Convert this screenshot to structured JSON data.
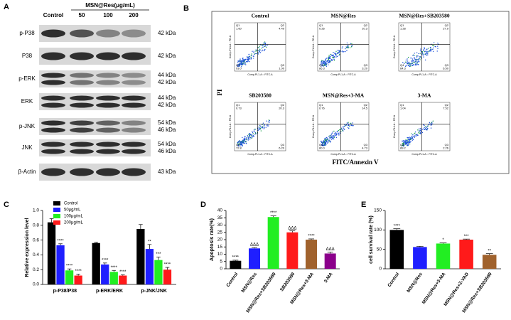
{
  "panel_labels": [
    "A",
    "B",
    "C",
    "D",
    "E"
  ],
  "blot": {
    "group_label": "MSN@Res(μg/mL)",
    "lanes": [
      "Control",
      "50",
      "100",
      "200"
    ],
    "rows": [
      {
        "label": "p-P38",
        "kda": [
          "42 kDa"
        ]
      },
      {
        "label": "P38",
        "kda": [
          "42 kDa"
        ]
      },
      {
        "label": "p-ERK",
        "kda": [
          "44 kDa",
          "42 kDa"
        ]
      },
      {
        "label": "ERK",
        "kda": [
          "44 kDa",
          "42 kDa"
        ]
      },
      {
        "label": "p-JNK",
        "kda": [
          "54 kDa",
          "46 kDa"
        ]
      },
      {
        "label": "JNK",
        "kda": [
          "54 kDa",
          "46 kDa"
        ]
      },
      {
        "label": "β-Actin",
        "kda": [
          "43 kDa"
        ]
      }
    ]
  },
  "flow": {
    "y_label": "PI",
    "x_label": "FITC/Annexin V",
    "axis_x": "Comp-PL1-A :: FITC-A",
    "axis_y": "Comp-PL4-A :: PE-A",
    "plots": [
      {
        "title": "Control",
        "quadrants": [
          [
            "Q1",
            "1.60"
          ],
          [
            "Q2",
            "4.49"
          ],
          [
            "Q4",
            "93.0"
          ],
          [
            "Q3",
            "1.00"
          ]
        ]
      },
      {
        "title": "MSN@Res",
        "quadrants": [
          [
            "Q1",
            "0.26"
          ],
          [
            "Q2",
            "10.3"
          ],
          [
            "Q4",
            "86.3"
          ],
          [
            "Q3",
            "3.20"
          ]
        ]
      },
      {
        "title": "MSN@Res+SB203580",
        "quadrants": [
          [
            "Q1",
            "1.28"
          ],
          [
            "Q2",
            "27.9"
          ],
          [
            "Q4",
            "64.3"
          ],
          [
            "Q3",
            "6.50"
          ]
        ]
      },
      {
        "title": "SB203580",
        "quadrants": [
          [
            "Q1",
            "0.73"
          ],
          [
            "Q2",
            "20.3"
          ],
          [
            "Q4",
            "72.8"
          ],
          [
            "Q3",
            "6.20"
          ]
        ]
      },
      {
        "title": "MSN@Res+3-MA",
        "quadrants": [
          [
            "Q1",
            "0.76"
          ],
          [
            "Q2",
            "14.5"
          ],
          [
            "Q4",
            "80.0"
          ],
          [
            "Q3",
            "4.73"
          ]
        ]
      },
      {
        "title": "3-MA",
        "quadrants": [
          [
            "Q1",
            "1.04"
          ],
          [
            "Q2",
            "7.52"
          ],
          [
            "Q4",
            "89.2"
          ],
          [
            "Q3",
            "2.26"
          ]
        ]
      }
    ]
  },
  "chart_data": [
    {
      "type": "bar",
      "ylabel": "Relative expression level",
      "categories": [
        "p-P38/P38",
        "p-ERK/ERK",
        "p-JNK/JNK"
      ],
      "series": [
        {
          "name": "Control",
          "color": "#000000",
          "values": [
            0.84,
            0.56,
            0.75
          ],
          "errors": [
            0.05,
            0.01,
            0.06
          ],
          "annotations": [
            null,
            null,
            null
          ]
        },
        {
          "name": "50μg/mL",
          "color": "#1f1fff",
          "values": [
            0.53,
            0.27,
            0.48
          ],
          "errors": [
            0.02,
            0.02,
            0.06
          ],
          "annotations": [
            "****",
            "****",
            "**"
          ]
        },
        {
          "name": "100μg/mL",
          "color": "#22ee22",
          "values": [
            0.19,
            0.17,
            0.33
          ],
          "errors": [
            0.02,
            0.02,
            0.04
          ],
          "annotations": [
            "****",
            "****",
            "***"
          ]
        },
        {
          "name": "200μg/mL",
          "color": "#ff1a1a",
          "values": [
            0.12,
            0.12,
            0.2
          ],
          "errors": [
            0.02,
            0.01,
            0.03
          ],
          "annotations": [
            "****",
            "****",
            "****"
          ]
        }
      ],
      "ylim": [
        0,
        1.0
      ],
      "yticks": [
        {
          "value": 0,
          "label": "0.0"
        },
        0.2,
        0.4,
        0.6,
        0.8,
        {
          "value": 1.0,
          "label": "1.0"
        }
      ]
    },
    {
      "type": "bar",
      "ylabel": "Apoptosis rate(%)",
      "categories": [
        "Control",
        "MSN@Res",
        "MSN@Res+SB203580",
        "SB203580",
        "MSN@Res+3-MA",
        "3-MA"
      ],
      "values": [
        5.5,
        14,
        35.5,
        25,
        20,
        10.5
      ],
      "errors": [
        0.4,
        0.6,
        0.8,
        1.0,
        0.5,
        1.0
      ],
      "colors": [
        "#000000",
        "#1f1fff",
        "#22ee22",
        "#ff1a1a",
        "#a0622d",
        "#8b008b"
      ],
      "annotations": [
        "****",
        "ΔΔΔ",
        "****",
        "ΔΔΔ",
        "****",
        "ΔΔΔ"
      ],
      "ylim": [
        0,
        40
      ],
      "yticks": [
        0,
        5,
        10,
        15,
        20,
        25,
        30,
        35,
        40
      ]
    },
    {
      "type": "bar",
      "ylabel": "cell survival rate (%)",
      "categories": [
        "Control",
        "MSN@Res",
        "MSN@Res+3-MA",
        "MSN@Res+Z-VAD",
        "MSN@Res+SB203580"
      ],
      "values": [
        100,
        56,
        65,
        75,
        36
      ],
      "errors": [
        3,
        2,
        1.5,
        1.5,
        3
      ],
      "colors": [
        "#000000",
        "#1f1fff",
        "#22ee22",
        "#ff1a1a",
        "#a0622d"
      ],
      "annotations": [
        "****",
        null,
        "*",
        "***",
        "**"
      ],
      "ylim": [
        0,
        150
      ],
      "yticks": [
        0,
        50,
        100,
        150
      ]
    }
  ]
}
